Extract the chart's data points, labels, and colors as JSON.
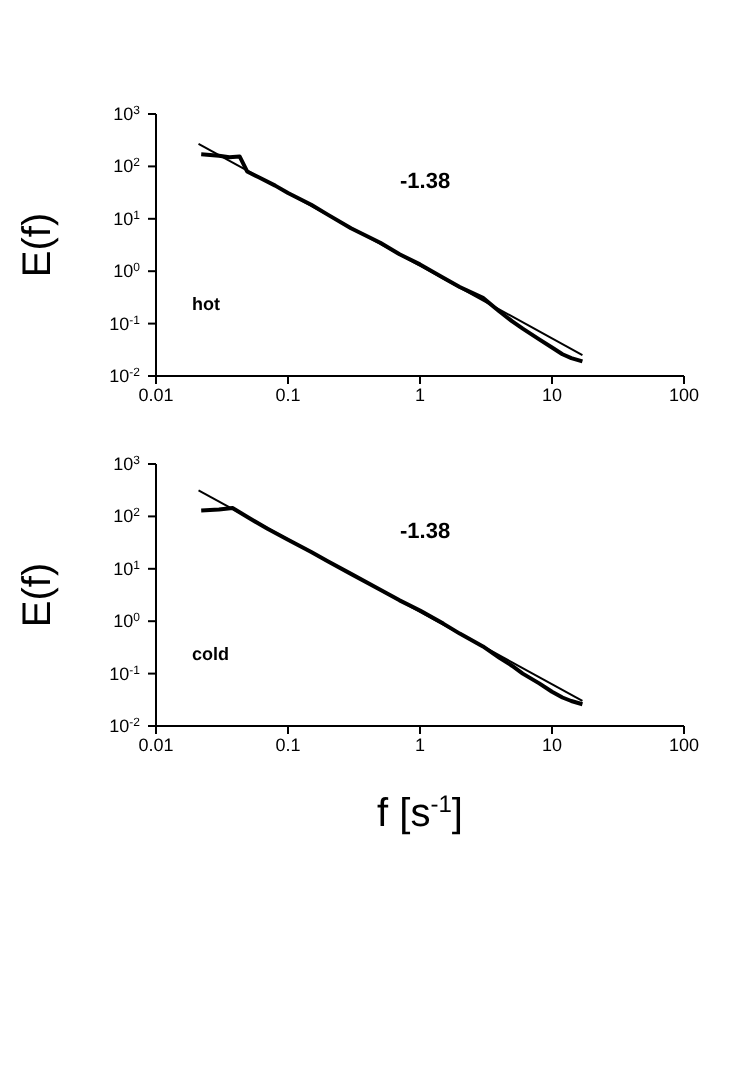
{
  "chart_data": [
    {
      "type": "line",
      "ylabel": "E(f)",
      "log": "xy",
      "xlim": [
        0.01,
        100
      ],
      "ylim": [
        0.01,
        1000
      ],
      "xticks": [
        0.01,
        0.1,
        1,
        10,
        100
      ],
      "yticks": [
        {
          "value": 0.01,
          "label": "10$^{-2}$"
        },
        {
          "value": 0.1,
          "label": "10$^{-1}$"
        },
        {
          "value": 1,
          "label": "10$^{0}$"
        },
        {
          "value": 10,
          "label": "10$^{1}$"
        },
        {
          "value": 100,
          "label": "10$^{2}$"
        },
        {
          "value": 1000,
          "label": "10$^{3}$"
        }
      ],
      "annotations": [
        "-1.38",
        "hot"
      ],
      "series": [
        {
          "color": "#000000",
          "x": [
            0.022,
            0.03,
            0.036,
            0.043,
            0.049,
            0.06,
            0.08,
            0.1,
            0.15,
            0.2,
            0.3,
            0.5,
            0.7,
            1,
            1.5,
            2,
            3,
            4,
            5,
            6,
            8,
            10,
            12,
            14,
            17
          ],
          "values": [
            170,
            160,
            150,
            155,
            80,
            62,
            43,
            31,
            18.5,
            12,
            6.6,
            3.5,
            2.1,
            1.35,
            0.75,
            0.5,
            0.31,
            0.17,
            0.11,
            0.08,
            0.05,
            0.035,
            0.026,
            0.022,
            0.019
          ]
        },
        {
          "type": "line",
          "color": "#000000",
          "x": [
            0.021,
            17
          ],
          "values": [
            270,
            0.025
          ]
        }
      ]
    },
    {
      "type": "line",
      "ylabel": "E(f)",
      "xlabel": "f  [s$^{-1}$]",
      "log": "xy",
      "xlim": [
        0.01,
        100
      ],
      "ylim": [
        0.01,
        1000
      ],
      "xticks": [
        0.01,
        0.1,
        1,
        10,
        100
      ],
      "yticks": [
        {
          "value": 0.01,
          "label": "10$^{-2}$"
        },
        {
          "value": 0.1,
          "label": "10$^{-1}$"
        },
        {
          "value": 1,
          "label": "10$^{0}$"
        },
        {
          "value": 10,
          "label": "10$^{1}$"
        },
        {
          "value": 100,
          "label": "10$^{2}$"
        },
        {
          "value": 1000,
          "label": "10$^{3}$"
        }
      ],
      "annotations": [
        "-1.38",
        "cold"
      ],
      "series": [
        {
          "color": "#000000",
          "x": [
            0.022,
            0.03,
            0.038,
            0.05,
            0.07,
            0.1,
            0.15,
            0.2,
            0.3,
            0.5,
            0.7,
            1,
            1.5,
            2,
            3,
            4,
            5,
            6,
            8,
            10,
            12,
            14,
            17
          ],
          "values": [
            130,
            135,
            145,
            95,
            58,
            36,
            21,
            14,
            8,
            4,
            2.5,
            1.6,
            0.9,
            0.58,
            0.33,
            0.2,
            0.14,
            0.1,
            0.065,
            0.045,
            0.035,
            0.03,
            0.026
          ]
        },
        {
          "type": "line",
          "color": "#000000",
          "x": [
            0.021,
            17
          ],
          "values": [
            315,
            0.03
          ]
        }
      ]
    }
  ]
}
